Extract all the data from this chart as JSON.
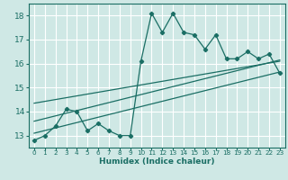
{
  "xlabel": "Humidex (Indice chaleur)",
  "bg_color": "#cfe8e5",
  "grid_color": "#ffffff",
  "line_color": "#1a6e64",
  "xlim": [
    -0.5,
    23.5
  ],
  "ylim": [
    12.5,
    18.5
  ],
  "xticks": [
    0,
    1,
    2,
    3,
    4,
    5,
    6,
    7,
    8,
    9,
    10,
    11,
    12,
    13,
    14,
    15,
    16,
    17,
    18,
    19,
    20,
    21,
    22,
    23
  ],
  "yticks": [
    13,
    14,
    15,
    16,
    17,
    18
  ],
  "main_x": [
    0,
    1,
    2,
    3,
    4,
    5,
    6,
    7,
    8,
    9,
    10,
    11,
    12,
    13,
    14,
    15,
    16,
    17,
    18,
    19,
    20,
    21,
    22,
    23
  ],
  "main_y": [
    12.8,
    13.0,
    13.4,
    14.1,
    14.0,
    13.2,
    13.5,
    13.2,
    13.0,
    13.0,
    16.1,
    18.1,
    17.3,
    18.1,
    17.3,
    17.2,
    16.6,
    17.2,
    16.2,
    16.2,
    16.5,
    16.2,
    16.4,
    15.6
  ],
  "line1_x": [
    0,
    23
  ],
  "line1_y": [
    13.6,
    16.15
  ],
  "line2_x": [
    0,
    23
  ],
  "line2_y": [
    14.35,
    16.1
  ],
  "line3_x": [
    0,
    23
  ],
  "line3_y": [
    13.1,
    15.65
  ]
}
